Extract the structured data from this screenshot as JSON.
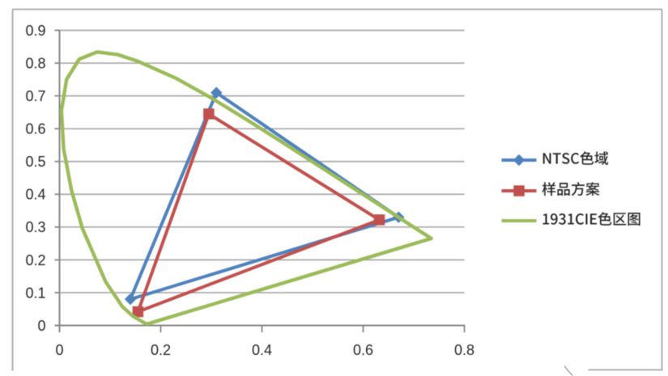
{
  "page": {
    "background": "#ffffff"
  },
  "chart": {
    "border_color": "#a8a8a8",
    "plot_background": "#ffffff",
    "grid_color": "#a9a9a9",
    "axis_color": "#878787",
    "tick_label_color": "#262626",
    "legend_text_color": "#262626"
  },
  "chart_data": {
    "type": "line",
    "title": "",
    "xlabel": "",
    "ylabel": "",
    "xlim": [
      0,
      0.8
    ],
    "ylim": [
      0,
      0.9
    ],
    "x_ticks": [
      0,
      0.2,
      0.4,
      0.6,
      0.8
    ],
    "x_tick_labels": [
      "0",
      "0.2",
      "0.4",
      "0.6",
      "0.8"
    ],
    "y_ticks": [
      0,
      0.1,
      0.2,
      0.3,
      0.4,
      0.5,
      0.6,
      0.7,
      0.8,
      0.9
    ],
    "y_tick_labels": [
      "0",
      "0.1",
      "0.2",
      "0.3",
      "0.4",
      "0.5",
      "0.6",
      "0.7",
      "0.8",
      "0.9"
    ],
    "grid": "horizontal-major",
    "legend_position": "right-middle",
    "series": [
      {
        "name": "NTSC色域",
        "color": "#4F81BD",
        "marker": "diamond",
        "marker_size": 13,
        "line_width": 4,
        "closed": true,
        "points": [
          [
            0.67,
            0.33
          ],
          [
            0.31,
            0.71
          ],
          [
            0.14,
            0.08
          ]
        ]
      },
      {
        "name": "样品方案",
        "color": "#C0504D",
        "marker": "square",
        "marker_size": 12.5,
        "line_width": 4,
        "closed": true,
        "points": [
          [
            0.632,
            0.322
          ],
          [
            0.295,
            0.645
          ],
          [
            0.155,
            0.042
          ]
        ]
      },
      {
        "name": "1931CIE色区图",
        "color": "#9BBB59",
        "marker": "none",
        "marker_size": 0,
        "line_width": 4.4,
        "closed": true,
        "points": [
          [
            0.1741,
            0.005
          ],
          [
            0.1738,
            0.0049
          ],
          [
            0.1733,
            0.0048
          ],
          [
            0.1726,
            0.0048
          ],
          [
            0.1714,
            0.0051
          ],
          [
            0.1689,
            0.0069
          ],
          [
            0.1644,
            0.0109
          ],
          [
            0.1566,
            0.0177
          ],
          [
            0.144,
            0.0297
          ],
          [
            0.1241,
            0.0578
          ],
          [
            0.0913,
            0.1327
          ],
          [
            0.0454,
            0.295
          ],
          [
            0.0235,
            0.4127
          ],
          [
            0.0082,
            0.5384
          ],
          [
            0.0039,
            0.6548
          ],
          [
            0.0139,
            0.7502
          ],
          [
            0.0389,
            0.812
          ],
          [
            0.0743,
            0.8338
          ],
          [
            0.1142,
            0.8262
          ],
          [
            0.1547,
            0.8059
          ],
          [
            0.2296,
            0.7543
          ],
          [
            0.3016,
            0.6923
          ],
          [
            0.3731,
            0.6245
          ],
          [
            0.4441,
            0.5547
          ],
          [
            0.5125,
            0.4866
          ],
          [
            0.5752,
            0.4242
          ],
          [
            0.627,
            0.3725
          ],
          [
            0.6658,
            0.334
          ],
          [
            0.6915,
            0.3083
          ],
          [
            0.7079,
            0.292
          ],
          [
            0.719,
            0.2809
          ],
          [
            0.726,
            0.274
          ],
          [
            0.73,
            0.27
          ],
          [
            0.732,
            0.268
          ],
          [
            0.7334,
            0.2666
          ],
          [
            0.7344,
            0.2656
          ],
          [
            0.7347,
            0.2653
          ]
        ]
      }
    ]
  },
  "legend": {
    "items": [
      {
        "label": "NTSC色域",
        "color": "#4F81BD",
        "marker": "diamond"
      },
      {
        "label": "样品方案",
        "color": "#C0504D",
        "marker": "square"
      },
      {
        "label": "1931CIE色区图",
        "color": "#9BBB59",
        "marker": "none"
      }
    ]
  }
}
